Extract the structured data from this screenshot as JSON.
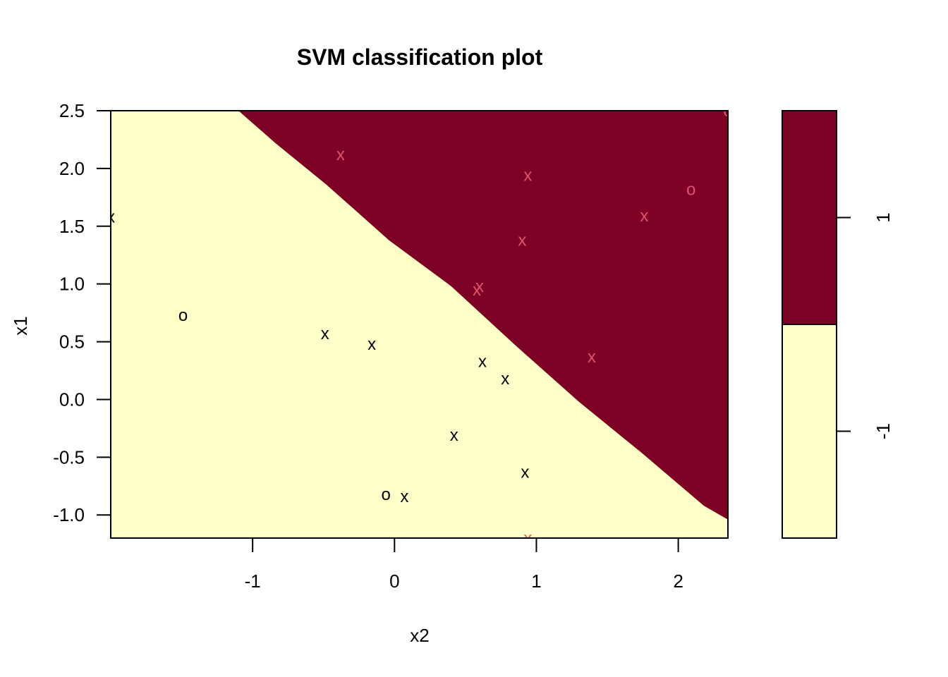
{
  "chart_data": {
    "type": "scatter",
    "title": "SVM classification plot",
    "xlabel": "x2",
    "ylabel": "x1",
    "xlim": [
      -2.0,
      2.35
    ],
    "ylim": [
      -1.2,
      2.5
    ],
    "x_ticks": [
      -1,
      0,
      1,
      2
    ],
    "x_tick_labels": [
      "-1",
      "0",
      "1",
      "2"
    ],
    "y_ticks": [
      -1.0,
      -0.5,
      0.0,
      0.5,
      1.0,
      1.5,
      2.0,
      2.5
    ],
    "y_tick_labels": [
      "-1.0",
      "-0.5",
      "0.0",
      "0.5",
      "1.0",
      "1.5",
      "2.0",
      "2.5"
    ],
    "grid": false,
    "regions": [
      {
        "class": "-1",
        "color": "#FFFFC8"
      },
      {
        "class": "1",
        "color": "#7D0025"
      }
    ],
    "boundary": [
      [
        -1.1,
        2.5
      ],
      [
        -0.84,
        2.22
      ],
      [
        -0.48,
        1.86
      ],
      [
        -0.04,
        1.38
      ],
      [
        0.4,
        0.98
      ],
      [
        0.86,
        0.46
      ],
      [
        1.3,
        -0.02
      ],
      [
        1.74,
        -0.46
      ],
      [
        2.18,
        -0.92
      ],
      [
        2.35,
        -1.04
      ]
    ],
    "legend": {
      "position": "right",
      "entries": [
        {
          "label": "1",
          "color": "#7D0025"
        },
        {
          "label": "-1",
          "color": "#FFFFC8"
        }
      ]
    },
    "series": [
      {
        "class": "-1",
        "color": "#000000",
        "points": [
          {
            "x": -2.0,
            "y": 1.58,
            "symbol": "x"
          },
          {
            "x": -1.49,
            "y": 0.73,
            "symbol": "o"
          },
          {
            "x": -0.49,
            "y": 0.57,
            "symbol": "x"
          },
          {
            "x": -0.16,
            "y": 0.48,
            "symbol": "x"
          },
          {
            "x": 0.62,
            "y": 0.33,
            "symbol": "x"
          },
          {
            "x": 0.78,
            "y": 0.18,
            "symbol": "x"
          },
          {
            "x": 0.42,
            "y": -0.31,
            "symbol": "x"
          },
          {
            "x": 0.92,
            "y": -0.63,
            "symbol": "x"
          },
          {
            "x": -0.06,
            "y": -0.82,
            "symbol": "o"
          },
          {
            "x": 0.07,
            "y": -0.84,
            "symbol": "x"
          }
        ]
      },
      {
        "class": "1",
        "color": "#DF536B",
        "points": [
          {
            "x": -0.38,
            "y": 2.12,
            "symbol": "x"
          },
          {
            "x": 0.94,
            "y": 1.94,
            "symbol": "x"
          },
          {
            "x": 2.09,
            "y": 1.82,
            "symbol": "o"
          },
          {
            "x": 1.76,
            "y": 1.59,
            "symbol": "x"
          },
          {
            "x": 0.9,
            "y": 1.38,
            "symbol": "x"
          },
          {
            "x": 0.6,
            "y": 0.98,
            "symbol": "x"
          },
          {
            "x": 0.58,
            "y": 0.95,
            "symbol": "x"
          },
          {
            "x": 1.39,
            "y": 0.37,
            "symbol": "x"
          },
          {
            "x": 0.94,
            "y": -1.2,
            "symbol": "x"
          },
          {
            "x": 2.35,
            "y": 2.5,
            "symbol": "o"
          }
        ]
      }
    ]
  }
}
